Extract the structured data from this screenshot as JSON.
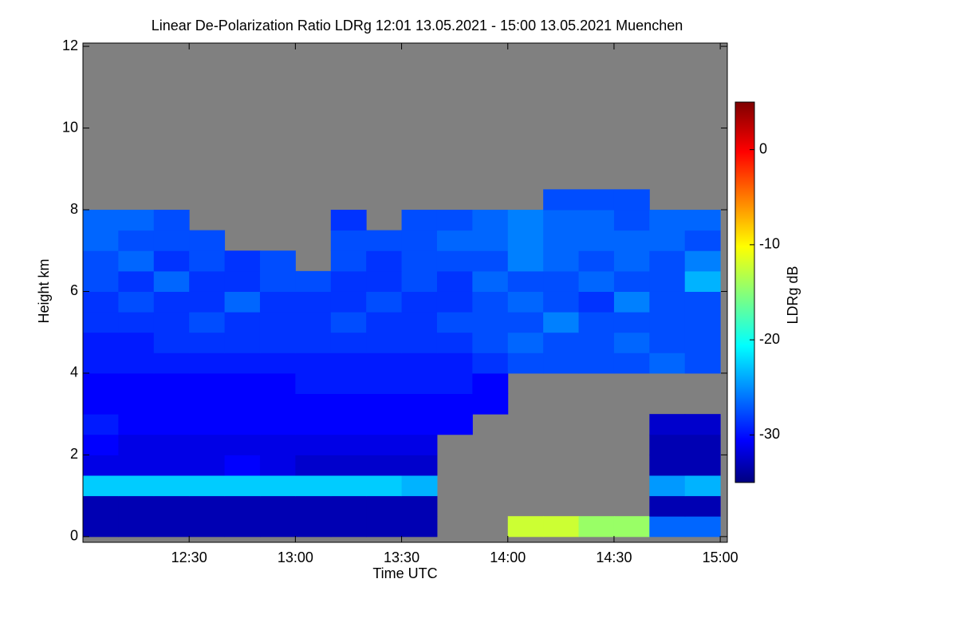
{
  "chart_data": {
    "type": "heatmap",
    "title": "Linear De-Polarization Ratio LDRg   12:01 13.05.2021 - 15:00 13.05.2021 Muenchen",
    "x_label": "Time UTC",
    "y_label": "Height km",
    "colorbar_label": "LDRg dB",
    "colormap": "jet",
    "null_color": "#808080",
    "xlim": [
      720,
      902
    ],
    "xticks": [
      {
        "value": 750,
        "label": "12:30"
      },
      {
        "value": 780,
        "label": "13:00"
      },
      {
        "value": 810,
        "label": "13:30"
      },
      {
        "value": 840,
        "label": "14:00"
      },
      {
        "value": 870,
        "label": "14:30"
      },
      {
        "value": 900,
        "label": "15:00"
      }
    ],
    "ylim": [
      -0.14,
      12.08
    ],
    "yticks": [
      0,
      2,
      4,
      6,
      8,
      10,
      12
    ],
    "clim": [
      -35,
      5
    ],
    "cticks": [
      0,
      -10,
      -20,
      -30
    ],
    "x": [
      725,
      735,
      745,
      755,
      765,
      775,
      785,
      795,
      805,
      815,
      825,
      835,
      845,
      855,
      865,
      875,
      885,
      895
    ],
    "y": [
      0.25,
      0.75,
      1.25,
      1.75,
      2.25,
      2.75,
      3.25,
      3.75,
      4.25,
      4.75,
      5.25,
      5.75,
      6.25,
      6.75,
      7.25,
      7.75,
      8.25,
      8.75,
      9.25,
      9.75,
      10.25,
      10.75,
      11.25,
      11.75
    ],
    "z": [
      [
        -33,
        -33,
        -33,
        -33,
        -33,
        -33,
        -33,
        -33,
        -33,
        -33,
        null,
        null,
        -12,
        -12,
        -14,
        -14,
        -26,
        -26
      ],
      [
        -33,
        -33,
        -33,
        -33,
        -33,
        -33,
        -33,
        -33,
        -33,
        -33,
        null,
        null,
        null,
        null,
        null,
        null,
        -33,
        -33
      ],
      [
        -22,
        -22,
        -22,
        -22,
        -22,
        -22,
        -22,
        -22,
        -22,
        -23,
        null,
        null,
        null,
        null,
        null,
        null,
        -24,
        -23
      ],
      [
        -31,
        -31,
        -31,
        -31,
        -30,
        -31,
        -32,
        -32,
        -32,
        -32,
        null,
        null,
        null,
        null,
        null,
        null,
        -33,
        -33
      ],
      [
        -30,
        -31,
        -31,
        -31,
        -31,
        -31,
        -31,
        -31,
        -31,
        -31,
        null,
        null,
        null,
        null,
        null,
        null,
        -33,
        -33
      ],
      [
        -29,
        -30,
        -30,
        -30,
        -30,
        -30,
        -30,
        -30,
        -30,
        -30,
        -30,
        null,
        null,
        null,
        null,
        null,
        -32,
        -32
      ],
      [
        -30,
        -30,
        -30,
        -30,
        -30,
        -30,
        -30,
        -30,
        -30,
        -30,
        -30,
        -30,
        null,
        null,
        null,
        null,
        null,
        null
      ],
      [
        -30,
        -30,
        -30,
        -30,
        -30,
        -30,
        -29,
        -29,
        -29,
        -29,
        -29,
        -30,
        null,
        null,
        null,
        null,
        null,
        null
      ],
      [
        -29,
        -29,
        -29,
        -29,
        -29,
        -29,
        -29,
        -29,
        -29,
        -29,
        -29,
        -28,
        -27,
        -27,
        -27,
        -27,
        -26,
        -27
      ],
      [
        -29,
        -29,
        -28,
        -28,
        -28,
        -28,
        -28,
        -28,
        -28,
        -28,
        -28,
        -27,
        -26,
        -27,
        -27,
        -26,
        -27,
        -27
      ],
      [
        -28,
        -28,
        -28,
        -27,
        -28,
        -28,
        -28,
        -27,
        -28,
        -28,
        -27,
        -27,
        -27,
        -25,
        -27,
        -27,
        -27,
        -27
      ],
      [
        -28,
        -27,
        -28,
        -28,
        -26,
        -28,
        -28,
        -28,
        -27,
        -28,
        -28,
        -27,
        -26,
        -27,
        -28,
        -25,
        -27,
        -27
      ],
      [
        -27,
        -28,
        -26,
        -28,
        -28,
        -27,
        -27,
        -28,
        -28,
        -27,
        -28,
        -26,
        -27,
        -27,
        -26,
        -27,
        -27,
        -23
      ],
      [
        -27,
        -26,
        -28,
        -27,
        -28,
        -27,
        null,
        -27,
        -28,
        -27,
        -27,
        -27,
        -25,
        -26,
        -27,
        -26,
        -27,
        -25
      ],
      [
        -26,
        -27,
        -27,
        -27,
        null,
        null,
        null,
        -27,
        -27,
        -27,
        -26,
        -26,
        -25,
        -26,
        -26,
        -26,
        -26,
        -27
      ],
      [
        -26,
        -26,
        -27,
        null,
        null,
        null,
        null,
        -28,
        null,
        -27,
        -27,
        -26,
        -25,
        -26,
        -26,
        -27,
        -26,
        -26
      ],
      [
        null,
        null,
        null,
        null,
        null,
        null,
        null,
        null,
        null,
        null,
        null,
        null,
        null,
        -27,
        -27,
        -27,
        null,
        null
      ],
      [
        null,
        null,
        null,
        null,
        null,
        null,
        null,
        null,
        null,
        null,
        null,
        null,
        null,
        null,
        null,
        null,
        null,
        null
      ],
      [
        null,
        null,
        null,
        null,
        null,
        null,
        null,
        null,
        null,
        null,
        null,
        null,
        null,
        null,
        null,
        null,
        null,
        null
      ],
      [
        null,
        null,
        null,
        null,
        null,
        null,
        null,
        null,
        null,
        null,
        null,
        null,
        null,
        null,
        null,
        null,
        null,
        null
      ],
      [
        null,
        null,
        null,
        null,
        null,
        null,
        null,
        null,
        null,
        null,
        null,
        null,
        null,
        null,
        null,
        null,
        null,
        null
      ],
      [
        null,
        null,
        null,
        null,
        null,
        null,
        null,
        null,
        null,
        null,
        null,
        null,
        null,
        null,
        null,
        null,
        null,
        null
      ],
      [
        null,
        null,
        null,
        null,
        null,
        null,
        null,
        null,
        null,
        null,
        null,
        null,
        null,
        null,
        null,
        null,
        null,
        null
      ],
      [
        null,
        null,
        null,
        null,
        null,
        null,
        null,
        null,
        null,
        null,
        null,
        null,
        null,
        null,
        null,
        null,
        null,
        null
      ]
    ]
  }
}
